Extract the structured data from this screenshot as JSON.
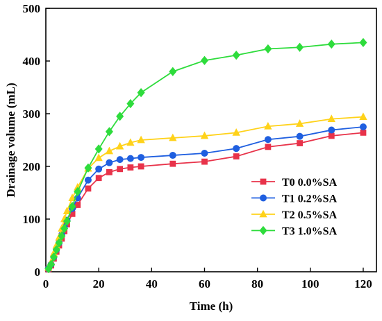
{
  "chart_data": {
    "type": "line",
    "title": "",
    "xlabel": "Time (h)",
    "ylabel": "Drainage volume (mL)",
    "xlim": [
      0,
      125
    ],
    "ylim": [
      0,
      500
    ],
    "xticks": [
      0,
      20,
      40,
      60,
      80,
      100,
      120
    ],
    "yticks": [
      0,
      100,
      200,
      300,
      400,
      500
    ],
    "grid": false,
    "legend_position": "lower-right",
    "series": [
      {
        "name": "T0 0.0%SA",
        "color": "#e8334a",
        "marker": "square",
        "x": [
          1,
          2,
          3,
          4,
          5,
          6,
          7,
          8,
          10,
          12,
          16,
          20,
          24,
          28,
          32,
          36,
          48,
          60,
          72,
          84,
          96,
          108,
          120
        ],
        "y": [
          5,
          12,
          25,
          38,
          50,
          63,
          77,
          90,
          110,
          127,
          158,
          178,
          189,
          195,
          198,
          200,
          205,
          209,
          219,
          237,
          244,
          258,
          264
        ]
      },
      {
        "name": "T1 0.2%SA",
        "color": "#1f5fe0",
        "marker": "circle",
        "x": [
          1,
          2,
          3,
          4,
          5,
          6,
          7,
          8,
          10,
          12,
          16,
          20,
          24,
          28,
          32,
          36,
          48,
          60,
          72,
          84,
          96,
          108,
          120
        ],
        "y": [
          6,
          14,
          28,
          42,
          55,
          70,
          85,
          98,
          120,
          140,
          174,
          195,
          207,
          213,
          215,
          217,
          221,
          225,
          234,
          251,
          257,
          269,
          275
        ]
      },
      {
        "name": "T2 0.5%SA",
        "color": "#ffd21a",
        "marker": "triangle",
        "x": [
          1,
          2,
          3,
          4,
          5,
          6,
          7,
          8,
          10,
          12,
          16,
          20,
          24,
          28,
          32,
          36,
          48,
          60,
          72,
          84,
          96,
          108,
          120
        ],
        "y": [
          8,
          18,
          35,
          50,
          65,
          82,
          100,
          115,
          140,
          160,
          196,
          216,
          229,
          238,
          245,
          250,
          254,
          258,
          264,
          276,
          281,
          290,
          294
        ]
      },
      {
        "name": "T3 1.0%SA",
        "color": "#2edc3c",
        "marker": "diamond",
        "x": [
          1,
          2,
          3,
          4,
          5,
          6,
          7,
          8,
          10,
          12,
          16,
          20,
          24,
          28,
          32,
          36,
          48,
          60,
          72,
          84,
          96,
          108,
          120
        ],
        "y": [
          6,
          14,
          28,
          42,
          55,
          68,
          82,
          96,
          124,
          152,
          197,
          233,
          266,
          295,
          319,
          340,
          380,
          401,
          411,
          423,
          426,
          432,
          435
        ]
      }
    ]
  }
}
